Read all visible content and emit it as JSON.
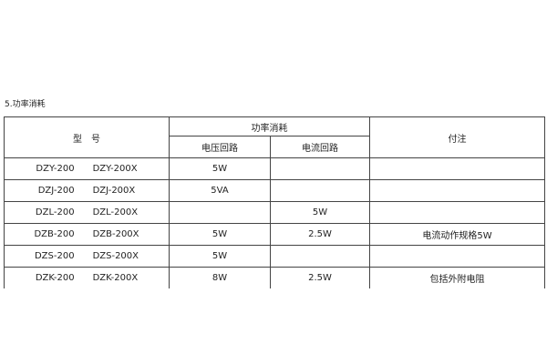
{
  "section_title": "5.功率消耗",
  "headers": {
    "model": "型　号",
    "power": "功率消耗",
    "voltage": "电压回路",
    "current": "电流回路",
    "note": "付注"
  },
  "rows": [
    {
      "model_a": "DZY-200",
      "model_b": "DZY-200X",
      "voltage": "5W",
      "current": "",
      "note": ""
    },
    {
      "model_a": "DZJ-200",
      "model_b": "DZJ-200X",
      "voltage": "5VA",
      "current": "",
      "note": ""
    },
    {
      "model_a": "DZL-200",
      "model_b": "DZL-200X",
      "voltage": "",
      "current": "5W",
      "note": ""
    },
    {
      "model_a": "DZB-200",
      "model_b": "DZB-200X",
      "voltage": "5W",
      "current": "2.5W",
      "note": "电流动作规格5W"
    },
    {
      "model_a": "DZS-200",
      "model_b": "DZS-200X",
      "voltage": "5W",
      "current": "",
      "note": ""
    },
    {
      "model_a": "DZK-200",
      "model_b": "DZK-200X",
      "voltage": "8W",
      "current": "2.5W",
      "note": "包括外附电阻"
    }
  ]
}
